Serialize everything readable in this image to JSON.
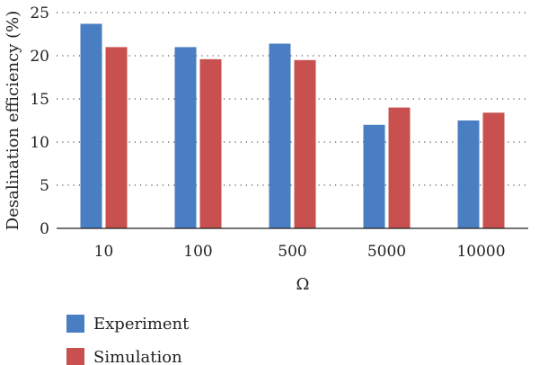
{
  "chart_data": {
    "type": "bar",
    "categories": [
      "10",
      "100",
      "500",
      "5000",
      "10000"
    ],
    "series": [
      {
        "name": "Experiment",
        "values": [
          23.7,
          21.0,
          21.4,
          12.0,
          12.5
        ],
        "color": "#4a7ec2"
      },
      {
        "name": "Simulation",
        "values": [
          21.0,
          19.6,
          19.5,
          14.0,
          13.4
        ],
        "color": "#c8504e"
      }
    ],
    "xlabel": "Ω",
    "ylabel": "Desalination efficiency (%)",
    "ylim": [
      0,
      25
    ],
    "yticks": [
      0,
      5,
      10,
      15,
      20,
      25
    ],
    "grid": "horizontal-dotted",
    "legend_position": "bottom-left"
  }
}
